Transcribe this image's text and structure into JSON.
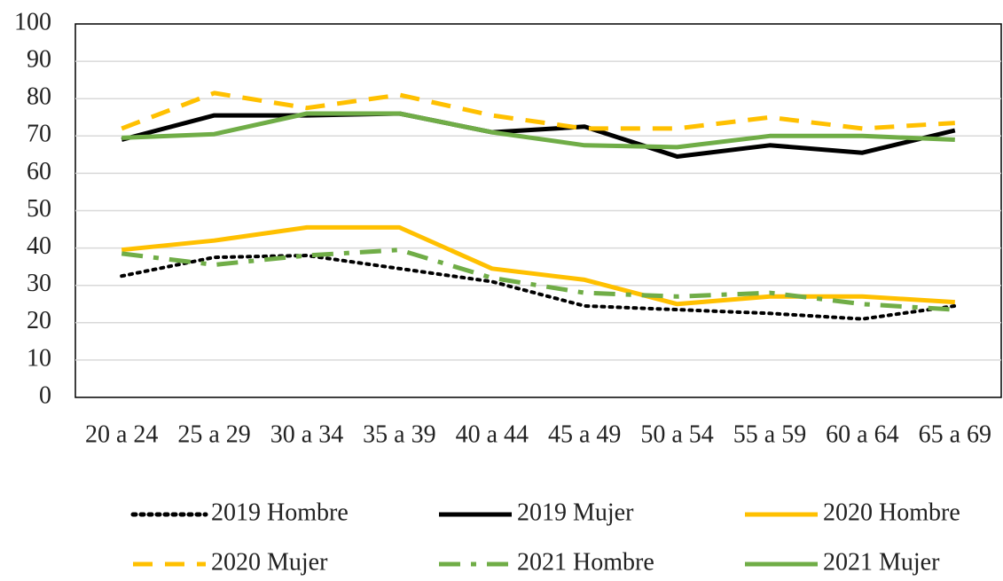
{
  "chart_data": {
    "type": "line",
    "categories": [
      "20 a 24",
      "25 a 29",
      "30 a 34",
      "35 a 39",
      "40 a 44",
      "45 a 49",
      "50 a 54",
      "55 a 59",
      "60 a 64",
      "65 a 69"
    ],
    "series": [
      {
        "name": "2019 Hombre",
        "color": "#000000",
        "dash": "dotted",
        "values": [
          32.5,
          37.5,
          38,
          34.5,
          31,
          24.5,
          23.5,
          22.5,
          21,
          24.5
        ]
      },
      {
        "name": "2019 Mujer",
        "color": "#000000",
        "dash": "solid",
        "values": [
          69,
          75.5,
          75.5,
          76,
          71,
          72.5,
          64.5,
          67.5,
          65.5,
          71.5
        ]
      },
      {
        "name": "2020 Hombre",
        "color": "#ffc000",
        "dash": "solid",
        "values": [
          39.5,
          42,
          45.5,
          45.5,
          34.5,
          31.5,
          25,
          27,
          27,
          25.5
        ]
      },
      {
        "name": "2020 Mujer",
        "color": "#ffc000",
        "dash": "dashed",
        "values": [
          72,
          81.5,
          77.5,
          81,
          75.5,
          72,
          72,
          75,
          72,
          73.5
        ]
      },
      {
        "name": "2021 Hombre",
        "color": "#70ad47",
        "dash": "dashdot",
        "values": [
          38.5,
          35.5,
          38,
          39.5,
          32,
          28,
          27,
          28,
          25,
          23.5
        ]
      },
      {
        "name": "2021 Mujer",
        "color": "#70ad47",
        "dash": "solid",
        "values": [
          69.5,
          70.5,
          76,
          76,
          71,
          67.5,
          67,
          70,
          70,
          69
        ]
      }
    ],
    "ylim": [
      0,
      100
    ],
    "yticks": [
      0,
      10,
      20,
      30,
      40,
      50,
      60,
      70,
      80,
      90,
      100
    ],
    "grid": true
  }
}
